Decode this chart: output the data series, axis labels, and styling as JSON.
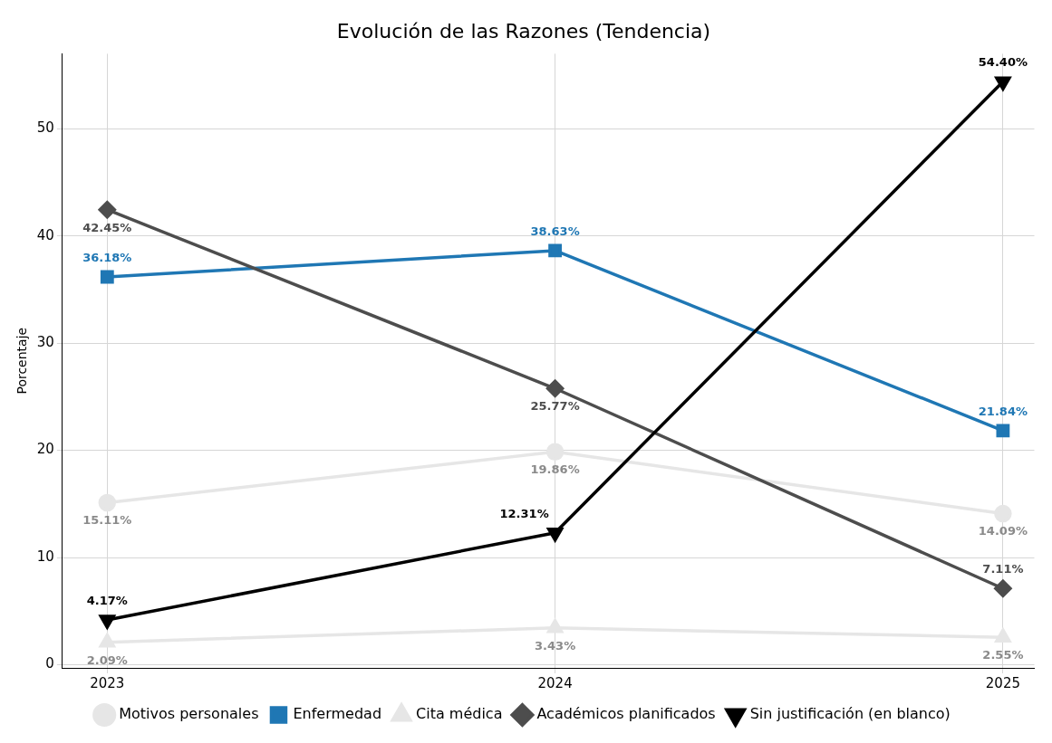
{
  "chart_data": {
    "type": "line",
    "title": "Evolución de las Razones (Tendencia)",
    "ylabel": "Porcentaje",
    "categories": [
      "2023",
      "2024",
      "2025"
    ],
    "ylim": [
      -0.3,
      57
    ],
    "yticks": [
      0,
      10,
      20,
      30,
      40,
      50
    ],
    "grid": true,
    "legend": "bottom",
    "line_style": "solid",
    "series": [
      {
        "name": "Motivos personales",
        "color": "#e6e6e6",
        "marker": "circle",
        "values": [
          15.11,
          19.86,
          14.09
        ],
        "value_labels": [
          "15.11%",
          "19.86%",
          "14.09%"
        ]
      },
      {
        "name": "Enfermedad",
        "color": "#1f77b4",
        "marker": "square",
        "values": [
          36.18,
          38.63,
          21.84
        ],
        "value_labels": [
          "36.18%",
          "38.63%",
          "21.84%"
        ]
      },
      {
        "name": "Cita médica",
        "color": "#e6e6e6",
        "marker": "triangle",
        "values": [
          2.09,
          3.43,
          2.55
        ],
        "value_labels": [
          "2.09%",
          "3.43%",
          "2.55%"
        ]
      },
      {
        "name": "Académicos planificados",
        "color": "#4d4d4d",
        "marker": "diamond",
        "values": [
          42.45,
          25.77,
          7.11
        ],
        "value_labels": [
          "42.45%",
          "25.77%",
          "7.11%"
        ]
      },
      {
        "name": "Sin justificación (en blanco)",
        "color": "#000000",
        "marker": "triangle-down",
        "values": [
          4.17,
          12.31,
          54.4
        ],
        "value_labels": [
          "4.17%",
          "12.31%",
          "54.40%"
        ]
      }
    ]
  }
}
